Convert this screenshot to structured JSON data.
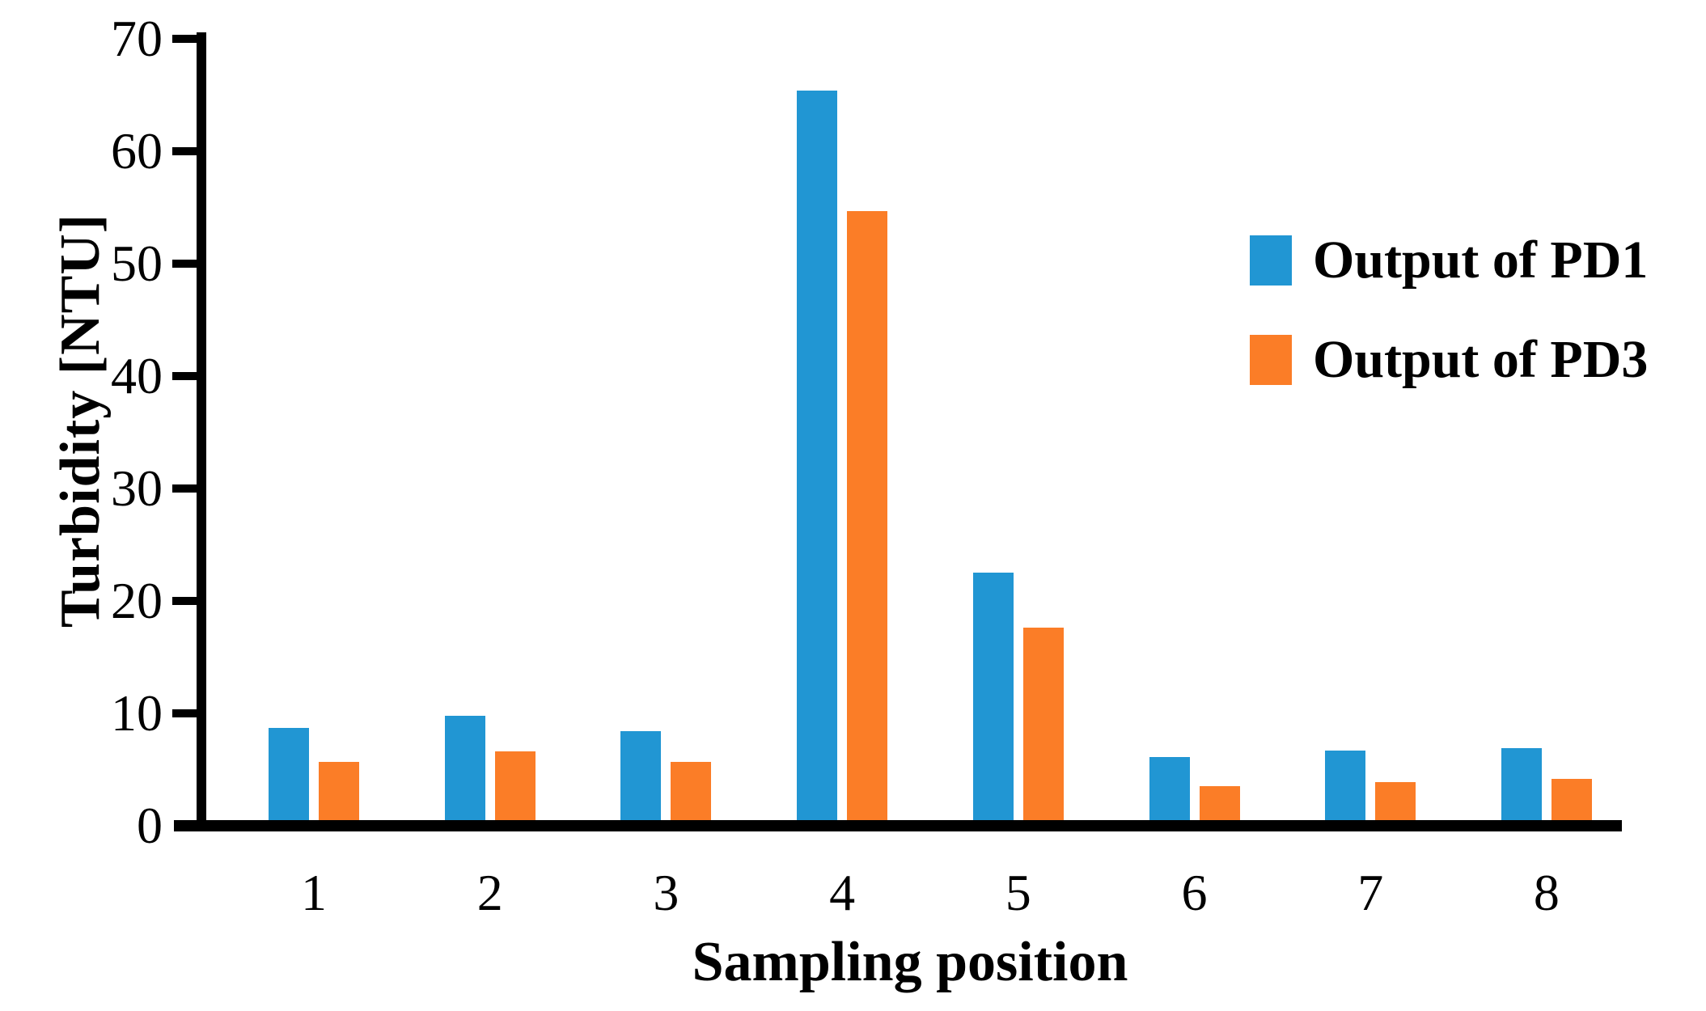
{
  "chart_data": {
    "type": "bar",
    "title": "",
    "xlabel": "Sampling position",
    "ylabel": "Turbidity [NTU]",
    "categories": [
      "1",
      "2",
      "3",
      "4",
      "5",
      "6",
      "7",
      "8"
    ],
    "series": [
      {
        "name": "Output of PD1",
        "color": "#2196d3",
        "values": [
          8.2,
          9.3,
          7.9,
          64.9,
          22.0,
          5.6,
          6.2,
          6.4
        ]
      },
      {
        "name": "Output of PD3",
        "color": "#fb7d27",
        "values": [
          5.2,
          6.1,
          5.2,
          54.2,
          17.1,
          3.0,
          3.4,
          3.7
        ]
      }
    ],
    "ylim": [
      0,
      70
    ],
    "yticks": [
      0,
      10,
      20,
      30,
      40,
      50,
      60,
      70
    ],
    "grid": false,
    "legend_position": "upper-right",
    "axis_color": "#000000",
    "background_color": "#ffffff"
  }
}
